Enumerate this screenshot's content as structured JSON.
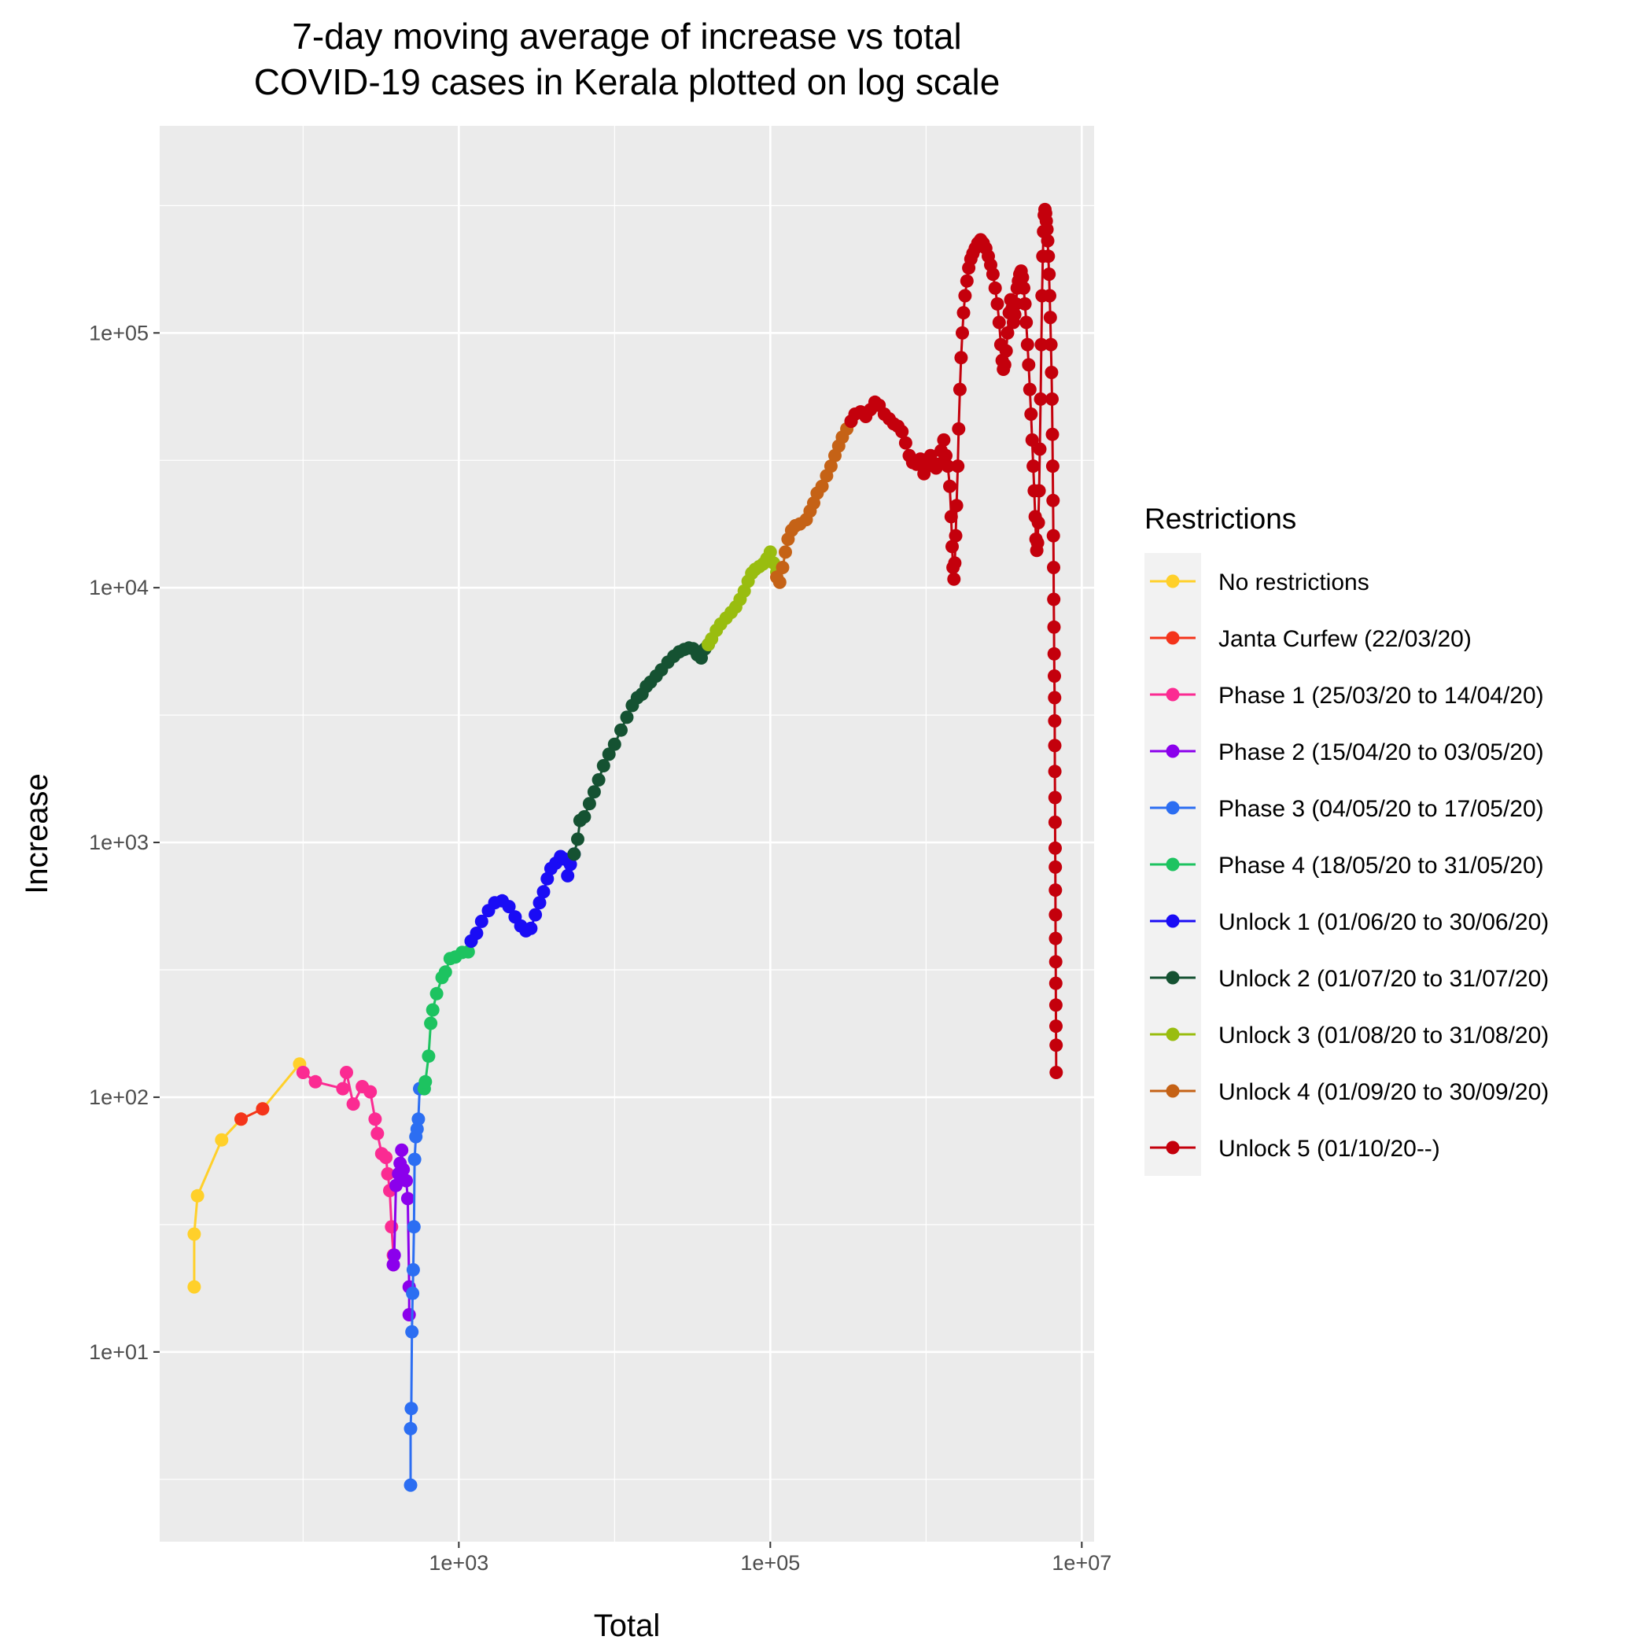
{
  "chart_data": {
    "type": "scatter",
    "title_lines": [
      "7-day moving average of increase vs total",
      "COVID-19 cases in Kerala plotted on log scale"
    ],
    "xlabel": "Total",
    "ylabel": "Increase",
    "x_scale": "log10",
    "y_scale": "log10",
    "xlim": [
      12,
      12000000
    ],
    "ylim": [
      1.8,
      650000
    ],
    "x_ticks": [
      {
        "value": 1000,
        "label": "1e+03"
      },
      {
        "value": 100000,
        "label": "1e+05"
      },
      {
        "value": 10000000,
        "label": "1e+07"
      }
    ],
    "y_ticks": [
      {
        "value": 10,
        "label": "1e+01"
      },
      {
        "value": 100,
        "label": "1e+02"
      },
      {
        "value": 1000,
        "label": "1e+03"
      },
      {
        "value": 10000,
        "label": "1e+04"
      },
      {
        "value": 100000,
        "label": "1e+05"
      }
    ],
    "grid": true,
    "legend": {
      "title": "Restrictions",
      "position": "right"
    },
    "series": [
      {
        "name": "No restrictions",
        "color": "#FFD02A",
        "points": [
          [
            20,
            18
          ],
          [
            20,
            29
          ],
          [
            21,
            41
          ],
          [
            30,
            68
          ],
          [
            40,
            82
          ],
          [
            55,
            90
          ],
          [
            95,
            135
          ]
        ]
      },
      {
        "name": "Janta Curfew (22/03/20)",
        "color": "#F4341B",
        "points": [
          [
            40,
            82
          ],
          [
            55,
            90
          ]
        ]
      },
      {
        "name": "Phase 1 (25/03/20 to 14/04/20)",
        "color": "#FB2B92",
        "points": [
          [
            100,
            125
          ],
          [
            120,
            115
          ],
          [
            180,
            108
          ],
          [
            190,
            125
          ],
          [
            210,
            94
          ],
          [
            240,
            110
          ],
          [
            270,
            105
          ],
          [
            290,
            82
          ],
          [
            300,
            72
          ],
          [
            320,
            60
          ],
          [
            340,
            58
          ],
          [
            350,
            50
          ],
          [
            360,
            43
          ],
          [
            370,
            31
          ],
          [
            380,
            24
          ],
          [
            380,
            22
          ]
        ]
      },
      {
        "name": "Phase 2 (15/04/20 to 03/05/20)",
        "color": "#8B00EC",
        "points": [
          [
            380,
            22
          ],
          [
            385,
            24
          ],
          [
            395,
            45
          ],
          [
            410,
            50
          ],
          [
            420,
            55
          ],
          [
            430,
            62
          ],
          [
            440,
            52
          ],
          [
            460,
            47
          ],
          [
            470,
            40
          ],
          [
            480,
            18
          ],
          [
            480,
            14
          ]
        ]
      },
      {
        "name": "Phase 3 (04/05/20 to 17/05/20)",
        "color": "#2C6EF2",
        "points": [
          [
            490,
            3
          ],
          [
            490,
            5
          ],
          [
            495,
            6
          ],
          [
            500,
            12
          ],
          [
            505,
            17
          ],
          [
            510,
            21
          ],
          [
            515,
            31
          ],
          [
            520,
            57
          ],
          [
            530,
            70
          ],
          [
            540,
            75
          ],
          [
            550,
            82
          ],
          [
            560,
            108
          ]
        ]
      },
      {
        "name": "Phase 4 (18/05/20 to 31/05/20)",
        "color": "#1DC360",
        "points": [
          [
            600,
            108
          ],
          [
            610,
            115
          ],
          [
            640,
            145
          ],
          [
            660,
            195
          ],
          [
            680,
            220
          ],
          [
            720,
            255
          ],
          [
            780,
            295
          ],
          [
            820,
            310
          ],
          [
            880,
            350
          ],
          [
            950,
            355
          ],
          [
            1050,
            370
          ],
          [
            1150,
            372
          ],
          [
            1200,
            410
          ]
        ]
      },
      {
        "name": "Unlock 1 (01/06/20 to 30/06/20)",
        "color": "#1A0CF5",
        "points": [
          [
            1200,
            410
          ],
          [
            1300,
            440
          ],
          [
            1400,
            490
          ],
          [
            1550,
            540
          ],
          [
            1700,
            580
          ],
          [
            1900,
            590
          ],
          [
            2100,
            560
          ],
          [
            2300,
            510
          ],
          [
            2500,
            470
          ],
          [
            2700,
            450
          ],
          [
            2900,
            460
          ],
          [
            3100,
            520
          ],
          [
            3300,
            580
          ],
          [
            3500,
            640
          ],
          [
            3700,
            720
          ],
          [
            3900,
            790
          ],
          [
            4200,
            830
          ],
          [
            4500,
            880
          ],
          [
            4800,
            860
          ],
          [
            5000,
            740
          ],
          [
            5200,
            820
          ],
          [
            5500,
            900
          ]
        ]
      },
      {
        "name": "Unlock 2 (01/07/20 to 31/07/20)",
        "color": "#155232",
        "points": [
          [
            5500,
            900
          ],
          [
            5800,
            1030
          ],
          [
            6000,
            1220
          ],
          [
            6400,
            1260
          ],
          [
            6900,
            1420
          ],
          [
            7400,
            1580
          ],
          [
            7900,
            1760
          ],
          [
            8500,
            2000
          ],
          [
            9200,
            2220
          ],
          [
            10000,
            2430
          ],
          [
            11000,
            2760
          ],
          [
            12000,
            3100
          ],
          [
            13000,
            3450
          ],
          [
            14000,
            3700
          ],
          [
            15000,
            3820
          ],
          [
            16000,
            4100
          ],
          [
            17000,
            4260
          ],
          [
            18500,
            4500
          ],
          [
            20000,
            4760
          ],
          [
            22000,
            5100
          ],
          [
            24000,
            5380
          ],
          [
            26000,
            5600
          ],
          [
            28000,
            5720
          ],
          [
            30000,
            5800
          ],
          [
            32000,
            5760
          ],
          [
            34000,
            5450
          ],
          [
            36000,
            5300
          ],
          [
            38000,
            5750
          ],
          [
            40000,
            5980
          ]
        ]
      },
      {
        "name": "Unlock 3 (01/08/20 to 31/08/20)",
        "color": "#99BD0F",
        "points": [
          [
            40000,
            5980
          ],
          [
            42000,
            6300
          ],
          [
            45000,
            6800
          ],
          [
            48000,
            7200
          ],
          [
            52000,
            7600
          ],
          [
            56000,
            8000
          ],
          [
            60000,
            8400
          ],
          [
            64000,
            9000
          ],
          [
            68000,
            9700
          ],
          [
            72000,
            10600
          ],
          [
            76000,
            11400
          ],
          [
            80000,
            11800
          ],
          [
            85000,
            12100
          ],
          [
            90000,
            12400
          ],
          [
            95000,
            13000
          ],
          [
            100000,
            13800
          ],
          [
            105000,
            12500
          ],
          [
            110000,
            11500
          ]
        ]
      },
      {
        "name": "Unlock 4 (01/09/20 to 30/09/20)",
        "color": "#C56216",
        "points": [
          [
            110000,
            11000
          ],
          [
            115000,
            10500
          ],
          [
            120000,
            12000
          ],
          [
            125000,
            13800
          ],
          [
            130000,
            15500
          ],
          [
            137000,
            16800
          ],
          [
            145000,
            17500
          ],
          [
            155000,
            17800
          ],
          [
            170000,
            18500
          ],
          [
            180000,
            20000
          ],
          [
            190000,
            21500
          ],
          [
            200000,
            23500
          ],
          [
            215000,
            25000
          ],
          [
            230000,
            27500
          ],
          [
            245000,
            30000
          ],
          [
            260000,
            33000
          ],
          [
            275000,
            36000
          ],
          [
            290000,
            39000
          ],
          [
            310000,
            42000
          ],
          [
            330000,
            45000
          ]
        ]
      },
      {
        "name": "Unlock 5 (01/10/20--)",
        "color": "#C4000C",
        "points": [
          [
            330000,
            45000
          ],
          [
            350000,
            48000
          ],
          [
            380000,
            49000
          ],
          [
            410000,
            47000
          ],
          [
            440000,
            50000
          ],
          [
            470000,
            53500
          ],
          [
            500000,
            52000
          ],
          [
            540000,
            48000
          ],
          [
            580000,
            46000
          ],
          [
            620000,
            44000
          ],
          [
            660000,
            43000
          ],
          [
            700000,
            41000
          ],
          [
            740000,
            37000
          ],
          [
            780000,
            33000
          ],
          [
            820000,
            31000
          ],
          [
            870000,
            30500
          ],
          [
            920000,
            32000
          ],
          [
            970000,
            28000
          ],
          [
            1020000,
            31000
          ],
          [
            1070000,
            33000
          ],
          [
            1120000,
            30000
          ],
          [
            1160000,
            29500
          ],
          [
            1200000,
            30500
          ],
          [
            1250000,
            34500
          ],
          [
            1300000,
            38000
          ],
          [
            1340000,
            33000
          ],
          [
            1380000,
            30000
          ],
          [
            1420000,
            25000
          ],
          [
            1450000,
            19000
          ],
          [
            1470000,
            14500
          ],
          [
            1490000,
            12000
          ],
          [
            1510000,
            10800
          ],
          [
            1530000,
            12500
          ],
          [
            1550000,
            16000
          ],
          [
            1570000,
            21000
          ],
          [
            1600000,
            30000
          ],
          [
            1620000,
            42000
          ],
          [
            1650000,
            60000
          ],
          [
            1680000,
            80000
          ],
          [
            1710000,
            100000
          ],
          [
            1740000,
            120000
          ],
          [
            1780000,
            140000
          ],
          [
            1830000,
            160000
          ],
          [
            1880000,
            180000
          ],
          [
            1940000,
            195000
          ],
          [
            2000000,
            205000
          ],
          [
            2070000,
            215000
          ],
          [
            2150000,
            225000
          ],
          [
            2240000,
            232000
          ],
          [
            2330000,
            225000
          ],
          [
            2420000,
            215000
          ],
          [
            2510000,
            200000
          ],
          [
            2600000,
            185000
          ],
          [
            2690000,
            170000
          ],
          [
            2780000,
            150000
          ],
          [
            2870000,
            130000
          ],
          [
            2950000,
            110000
          ],
          [
            3020000,
            90000
          ],
          [
            3080000,
            78000
          ],
          [
            3140000,
            72000
          ],
          [
            3200000,
            75000
          ],
          [
            3270000,
            85000
          ],
          [
            3340000,
            100000
          ],
          [
            3420000,
            120000
          ],
          [
            3500000,
            135000
          ],
          [
            3570000,
            125000
          ],
          [
            3640000,
            110000
          ],
          [
            3710000,
            118000
          ],
          [
            3780000,
            130000
          ],
          [
            3850000,
            150000
          ],
          [
            3920000,
            160000
          ],
          [
            4000000,
            170000
          ],
          [
            4080000,
            175000
          ],
          [
            4160000,
            165000
          ],
          [
            4240000,
            150000
          ],
          [
            4320000,
            130000
          ],
          [
            4400000,
            110000
          ],
          [
            4480000,
            90000
          ],
          [
            4560000,
            75000
          ],
          [
            4640000,
            60000
          ],
          [
            4720000,
            48000
          ],
          [
            4800000,
            38000
          ],
          [
            4880000,
            30000
          ],
          [
            4950000,
            24000
          ],
          [
            5020000,
            19000
          ],
          [
            5080000,
            15500
          ],
          [
            5140000,
            14000
          ],
          [
            5200000,
            15000
          ],
          [
            5260000,
            18000
          ],
          [
            5320000,
            24000
          ],
          [
            5380000,
            35000
          ],
          [
            5440000,
            55000
          ],
          [
            5500000,
            90000
          ],
          [
            5560000,
            140000
          ],
          [
            5620000,
            200000
          ],
          [
            5680000,
            250000
          ],
          [
            5740000,
            290000
          ],
          [
            5800000,
            305000
          ],
          [
            5860000,
            295000
          ],
          [
            5920000,
            275000
          ],
          [
            5980000,
            255000
          ],
          [
            6040000,
            230000
          ],
          [
            6100000,
            200000
          ],
          [
            6160000,
            170000
          ],
          [
            6220000,
            140000
          ],
          [
            6280000,
            115000
          ],
          [
            6340000,
            90000
          ],
          [
            6400000,
            70000
          ],
          [
            6440000,
            55000
          ],
          [
            6480000,
            40000
          ],
          [
            6510000,
            30000
          ],
          [
            6540000,
            22000
          ],
          [
            6570000,
            16000
          ],
          [
            6590000,
            12000
          ],
          [
            6610000,
            9000
          ],
          [
            6630000,
            7000
          ],
          [
            6650000,
            5500
          ],
          [
            6670000,
            4500
          ],
          [
            6690000,
            3700
          ],
          [
            6700000,
            3000
          ],
          [
            6710000,
            2400
          ],
          [
            6720000,
            1900
          ],
          [
            6730000,
            1500
          ],
          [
            6740000,
            1200
          ],
          [
            6750000,
            950
          ],
          [
            6760000,
            800
          ],
          [
            6770000,
            650
          ],
          [
            6780000,
            520
          ],
          [
            6790000,
            420
          ],
          [
            6800000,
            340
          ],
          [
            6810000,
            280
          ],
          [
            6820000,
            230
          ],
          [
            6830000,
            190
          ],
          [
            6840000,
            160
          ],
          [
            6850000,
            125
          ]
        ]
      }
    ]
  }
}
